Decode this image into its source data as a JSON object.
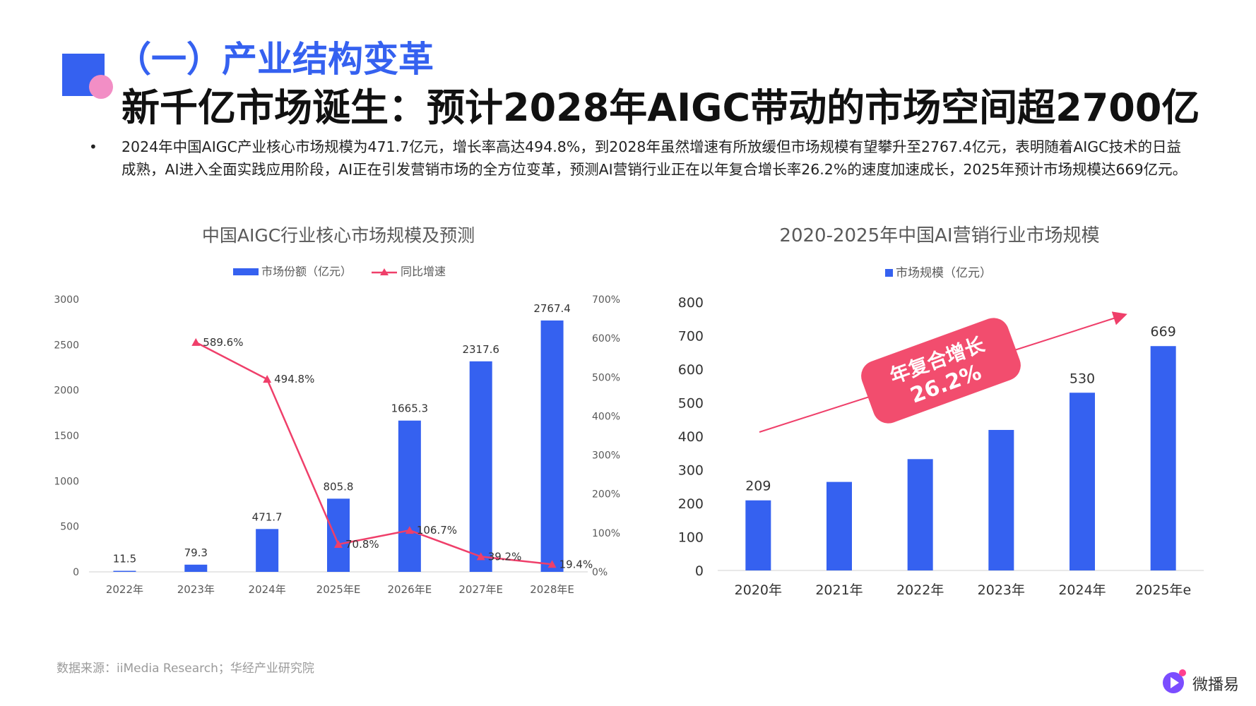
{
  "header": {
    "section_title": "（一）产业结构变革",
    "main_title": "新千亿市场诞生：预计2028年AIGC带动的市场空间超2700亿"
  },
  "description": {
    "bullet": "•",
    "text": "2024年中国AIGC产业核心市场规模为471.7亿元，增长率高达494.8%，到2028年虽然增速有所放缓但市场规模有望攀升至2767.4亿元，表明随着AIGC技术的日益成熟，AI进入全面实践应用阶段，AI正在引发营销市场的全方位变革，预测AI营销行业正在以年复合增长率26.2%的速度加速成长，2025年预计市场规模达669亿元。"
  },
  "chart_data": [
    {
      "type": "bar",
      "title": "中国AIGC行业核心市场规模及预测",
      "categories": [
        "2022年",
        "2023年",
        "2024年",
        "2025年E",
        "2026年E",
        "2027年E",
        "2028年E"
      ],
      "series": [
        {
          "name": "市场份额（亿元）",
          "type": "bar",
          "axis": "left",
          "values": [
            11.5,
            79.3,
            471.7,
            805.8,
            1665.3,
            2317.6,
            2767.4
          ],
          "labels": [
            "11.5",
            "79.3",
            "471.7",
            "805.8",
            "1665.3",
            "2317.6",
            "2767.4"
          ],
          "color": "#3561f0"
        },
        {
          "name": "同比增速",
          "type": "line",
          "axis": "right",
          "values": [
            null,
            589.6,
            494.8,
            70.8,
            106.7,
            39.2,
            19.4
          ],
          "labels": [
            "",
            "589.6%",
            "494.8%",
            "70.8%",
            "106.7%",
            "39.2%",
            "19.4%"
          ],
          "color": "#ef3f6a"
        }
      ],
      "ylim": [
        0,
        3000
      ],
      "y_ticks": [
        "0",
        "500",
        "1000",
        "1500",
        "2000",
        "2500",
        "3000"
      ],
      "y2lim": [
        0,
        700
      ],
      "y2_ticks": [
        "0%",
        "100%",
        "200%",
        "300%",
        "400%",
        "500%",
        "600%",
        "700%"
      ],
      "legend": "top-center",
      "grid": false
    },
    {
      "type": "bar",
      "title": "2020-2025年中国AI营销行业市场规模",
      "categories": [
        "2020年",
        "2021年",
        "2022年",
        "2023年",
        "2024年",
        "2025年e"
      ],
      "series": [
        {
          "name": "市场规模（亿元）",
          "values": [
            209,
            264,
            332,
            419,
            530,
            669
          ],
          "labels": [
            "209",
            "",
            "",
            "",
            "530",
            "669"
          ],
          "color": "#3561f0"
        }
      ],
      "ylim": [
        0,
        800
      ],
      "y_ticks": [
        "0",
        "100",
        "200",
        "300",
        "400",
        "500",
        "600",
        "700",
        "800"
      ],
      "annotation": {
        "line1": "年复合增长",
        "line2": "26.2%",
        "color": "#f24d6e"
      },
      "legend": "top-center",
      "grid": false
    }
  ],
  "source": "数据来源：iiMedia Research；华经产业研究院",
  "logo": {
    "text": "微播易"
  },
  "colors": {
    "accent": "#3561f0",
    "pink": "#f28ec5",
    "line": "#ef3f6a",
    "badge": "#f24d6e"
  }
}
